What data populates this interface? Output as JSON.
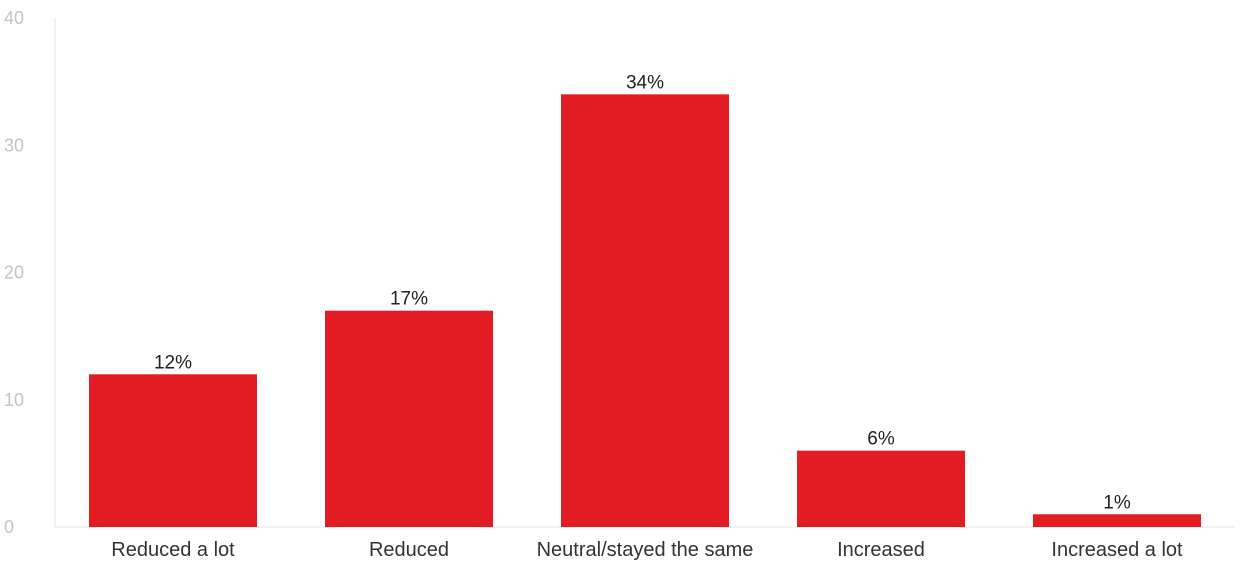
{
  "chart_data": {
    "type": "bar",
    "categories": [
      "Reduced a lot",
      "Reduced",
      "Neutral/stayed the same",
      "Increased",
      "Increased a lot"
    ],
    "values": [
      12,
      17,
      34,
      6,
      1
    ],
    "data_labels": [
      "12%",
      "17%",
      "34%",
      "6%",
      "1%"
    ],
    "yticks": [
      "0",
      "10",
      "20",
      "30",
      "40"
    ],
    "ylim": [
      0,
      40
    ],
    "grid": false,
    "bar_color": "#e31b23",
    "axis_color": "#e0e0e0"
  }
}
